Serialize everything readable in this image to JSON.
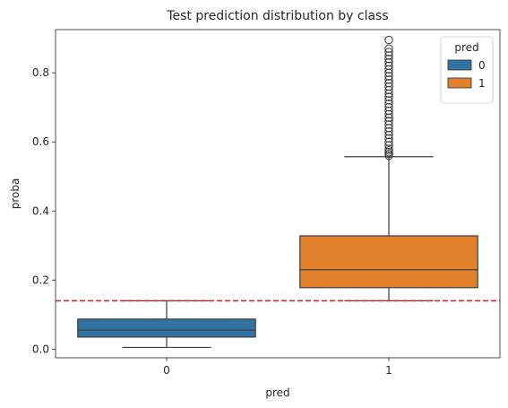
{
  "chart_data": {
    "type": "box",
    "title": "Test prediction distribution by class",
    "xlabel": "pred",
    "ylabel": "proba",
    "categories": [
      "0",
      "1"
    ],
    "ylim": [
      -0.025,
      0.925
    ],
    "yticks": [
      0.0,
      0.2,
      0.4,
      0.6,
      0.8
    ],
    "ytick_labels": [
      "0.0",
      "0.2",
      "0.4",
      "0.6",
      "0.8"
    ],
    "grid": false,
    "legend": {
      "title": "pred",
      "placement": "top-right",
      "entries": [
        {
          "label": "0",
          "color": "#3274a1"
        },
        {
          "label": "1",
          "color": "#e1812c"
        }
      ]
    },
    "boxes": [
      {
        "category": "0",
        "color": "#3274a1",
        "whisker_low": 0.005,
        "q1": 0.035,
        "median": 0.055,
        "q3": 0.087,
        "whisker_high": 0.14,
        "outliers": []
      },
      {
        "category": "1",
        "color": "#e1812c",
        "whisker_low": 0.14,
        "q1": 0.178,
        "median": 0.23,
        "q3": 0.328,
        "whisker_high": 0.557,
        "outliers": [
          0.56,
          0.565,
          0.57,
          0.575,
          0.58,
          0.59,
          0.6,
          0.61,
          0.62,
          0.63,
          0.64,
          0.65,
          0.66,
          0.67,
          0.68,
          0.69,
          0.7,
          0.71,
          0.72,
          0.73,
          0.74,
          0.75,
          0.76,
          0.77,
          0.78,
          0.79,
          0.8,
          0.81,
          0.82,
          0.83,
          0.84,
          0.85,
          0.86,
          0.87,
          0.895
        ]
      }
    ],
    "threshold_line": {
      "y": 0.14,
      "color": "#d62728",
      "style": "dashed"
    }
  }
}
